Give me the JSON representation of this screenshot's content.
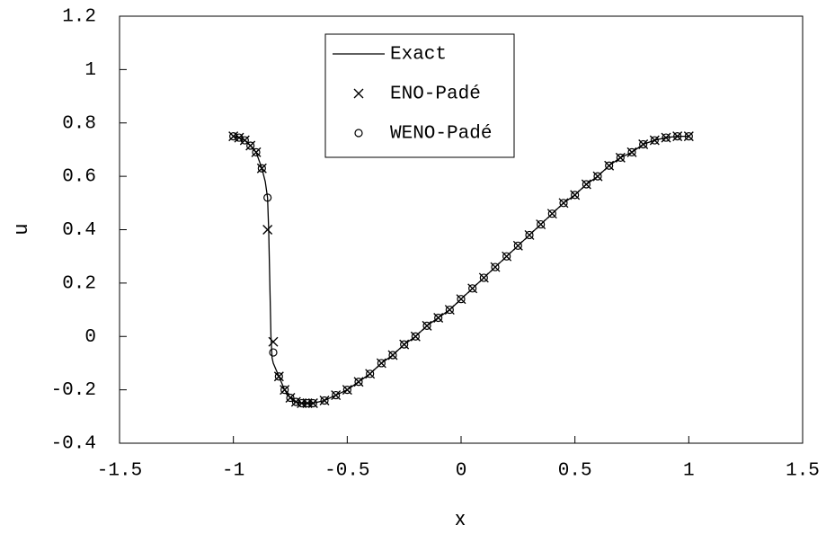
{
  "chart_data": {
    "type": "line",
    "xlabel": "x",
    "ylabel": "u",
    "xlim": [
      -1.5,
      1.5
    ],
    "xticks": [
      -1.5,
      -1,
      -0.5,
      0,
      0.5,
      1,
      1.5
    ],
    "ylim": [
      -0.4,
      1.2
    ],
    "yticks": [
      -0.4,
      -0.2,
      0,
      0.2,
      0.4,
      0.6,
      0.8,
      1,
      1.2
    ],
    "legend": "top-center",
    "series": [
      {
        "name": "Exact",
        "color": "#000000",
        "marker": "line",
        "x": [
          -1,
          -0.975,
          -0.95,
          -0.925,
          -0.9,
          -0.875,
          -0.86,
          -0.85,
          -0.845,
          -0.84,
          -0.835,
          -0.83,
          -0.825,
          -0.8,
          -0.775,
          -0.75,
          -0.725,
          -0.7,
          -0.675,
          -0.65,
          -0.6,
          -0.55,
          -0.5,
          -0.45,
          -0.4,
          -0.35,
          -0.3,
          -0.25,
          -0.2,
          -0.15,
          -0.1,
          -0.05,
          0,
          0.05,
          0.1,
          0.15,
          0.2,
          0.25,
          0.3,
          0.35,
          0.4,
          0.45,
          0.5,
          0.55,
          0.6,
          0.65,
          0.7,
          0.75,
          0.8,
          0.85,
          0.9,
          0.95,
          1
        ],
        "values": [
          0.75,
          0.745,
          0.735,
          0.715,
          0.69,
          0.63,
          0.58,
          0.52,
          0.4,
          0.2,
          0,
          -0.08,
          -0.1,
          -0.15,
          -0.2,
          -0.23,
          -0.245,
          -0.25,
          -0.25,
          -0.25,
          -0.24,
          -0.22,
          -0.2,
          -0.17,
          -0.14,
          -0.1,
          -0.07,
          -0.03,
          0,
          0.04,
          0.07,
          0.1,
          0.14,
          0.18,
          0.22,
          0.26,
          0.3,
          0.34,
          0.38,
          0.42,
          0.46,
          0.5,
          0.53,
          0.57,
          0.6,
          0.64,
          0.67,
          0.69,
          0.72,
          0.735,
          0.745,
          0.75,
          0.75
        ]
      },
      {
        "name": "ENO-Padé",
        "color": "#000000",
        "marker": "cross",
        "x": [
          -1,
          -0.975,
          -0.95,
          -0.925,
          -0.9,
          -0.875,
          -0.85,
          -0.825,
          -0.8,
          -0.775,
          -0.75,
          -0.725,
          -0.7,
          -0.675,
          -0.65,
          -0.6,
          -0.55,
          -0.5,
          -0.45,
          -0.4,
          -0.35,
          -0.3,
          -0.25,
          -0.2,
          -0.15,
          -0.1,
          -0.05,
          0,
          0.05,
          0.1,
          0.15,
          0.2,
          0.25,
          0.3,
          0.35,
          0.4,
          0.45,
          0.5,
          0.55,
          0.6,
          0.65,
          0.7,
          0.75,
          0.8,
          0.85,
          0.9,
          0.95,
          1
        ],
        "values": [
          0.75,
          0.745,
          0.735,
          0.715,
          0.69,
          0.63,
          0.4,
          -0.02,
          -0.15,
          -0.2,
          -0.23,
          -0.245,
          -0.25,
          -0.25,
          -0.25,
          -0.24,
          -0.22,
          -0.2,
          -0.17,
          -0.14,
          -0.1,
          -0.07,
          -0.03,
          0,
          0.04,
          0.07,
          0.1,
          0.14,
          0.18,
          0.22,
          0.26,
          0.3,
          0.34,
          0.38,
          0.42,
          0.46,
          0.5,
          0.53,
          0.57,
          0.6,
          0.64,
          0.67,
          0.69,
          0.72,
          0.735,
          0.745,
          0.75,
          0.75
        ]
      },
      {
        "name": "WENO-Padé",
        "color": "#000000",
        "marker": "circle",
        "x": [
          -1,
          -0.975,
          -0.95,
          -0.925,
          -0.9,
          -0.875,
          -0.85,
          -0.825,
          -0.8,
          -0.775,
          -0.75,
          -0.725,
          -0.7,
          -0.675,
          -0.65,
          -0.6,
          -0.55,
          -0.5,
          -0.45,
          -0.4,
          -0.35,
          -0.3,
          -0.25,
          -0.2,
          -0.15,
          -0.1,
          -0.05,
          0,
          0.05,
          0.1,
          0.15,
          0.2,
          0.25,
          0.3,
          0.35,
          0.4,
          0.45,
          0.5,
          0.55,
          0.6,
          0.65,
          0.7,
          0.75,
          0.8,
          0.85,
          0.9,
          0.95,
          1
        ],
        "values": [
          0.75,
          0.745,
          0.735,
          0.715,
          0.69,
          0.63,
          0.52,
          -0.06,
          -0.15,
          -0.2,
          -0.23,
          -0.245,
          -0.25,
          -0.25,
          -0.25,
          -0.24,
          -0.22,
          -0.2,
          -0.17,
          -0.14,
          -0.1,
          -0.07,
          -0.03,
          0,
          0.04,
          0.07,
          0.1,
          0.14,
          0.18,
          0.22,
          0.26,
          0.3,
          0.34,
          0.38,
          0.42,
          0.46,
          0.5,
          0.53,
          0.57,
          0.6,
          0.64,
          0.67,
          0.69,
          0.72,
          0.735,
          0.745,
          0.75,
          0.75
        ]
      }
    ]
  }
}
